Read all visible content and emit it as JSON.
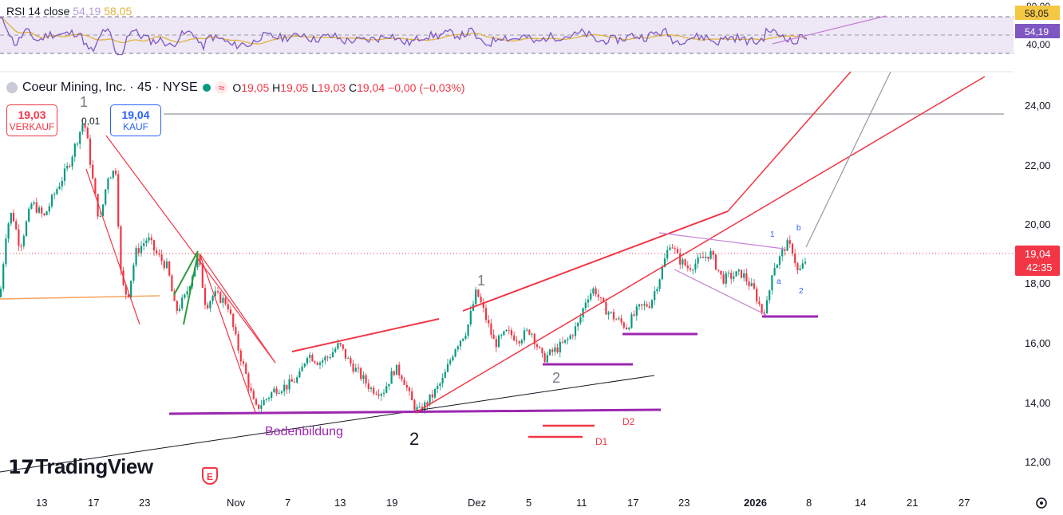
{
  "header": {
    "symbol": "Coeur Mining, Inc. · 45 · NYSE",
    "ohlc": {
      "o_label": "O",
      "o": "19,05",
      "h_label": "H",
      "h": "19,05",
      "l_label": "L",
      "l": "19,03",
      "c_label": "C",
      "c": "19,04",
      "change": "−0,00 (−0,03%)"
    }
  },
  "trade": {
    "sell_price": "19,03",
    "sell_label": "VERKAUF",
    "buy_price": "19,04",
    "buy_label": "KAUF",
    "spread": "0,01"
  },
  "rsi": {
    "title": "RSI 14 close",
    "value": "54,19",
    "ma_value": "58,05",
    "axis_ticks": [
      "80,00",
      "40,00"
    ],
    "badge_ma": "58,05",
    "badge_rsi": "54,19"
  },
  "price_axis": {
    "ticks": [
      "24,00",
      "22,00",
      "20,00",
      "18,00",
      "16,00",
      "14,00",
      "12,00"
    ],
    "current_price": "19,04",
    "countdown": "42:35"
  },
  "time_axis": {
    "labels": [
      "13",
      "17",
      "23",
      "Nov",
      "7",
      "13",
      "19",
      "Dez",
      "5",
      "11",
      "17",
      "23",
      "2026",
      "8",
      "14",
      "21",
      "27"
    ]
  },
  "annotations": {
    "wave_labels": [
      "1",
      "2",
      "1",
      "2"
    ],
    "small_labels": [
      "1",
      "b",
      "a",
      "2"
    ],
    "bottom_text": "Bodenbildung",
    "d_labels": [
      "D2",
      "D1"
    ]
  },
  "brand": {
    "name": "TradingView",
    "badge": "E"
  },
  "colors": {
    "up": "#089981",
    "down": "#f23645",
    "trend": "#f23645",
    "support": "#9c27b0",
    "rsi": "#7e57c2",
    "rsi_ma": "#e0b33a"
  },
  "chart_data": {
    "type": "candlestick",
    "interval": "45 min",
    "y_range": [
      11.2,
      25.2
    ],
    "rsi_range": [
      30,
      90
    ],
    "last_price": 19.04,
    "path": [
      [
        0,
        17.6
      ],
      [
        8,
        19.9
      ],
      [
        15,
        20.5
      ],
      [
        25,
        19.3
      ],
      [
        40,
        20.8
      ],
      [
        55,
        20.3
      ],
      [
        70,
        21.2
      ],
      [
        85,
        22.0
      ],
      [
        95,
        22.8
      ],
      [
        105,
        23.6
      ],
      [
        110,
        22.8
      ],
      [
        118,
        21.2
      ],
      [
        125,
        20.1
      ],
      [
        135,
        21.7
      ],
      [
        145,
        21.9
      ],
      [
        152,
        18.1
      ],
      [
        160,
        17.6
      ],
      [
        170,
        19.1
      ],
      [
        185,
        19.6
      ],
      [
        195,
        19.1
      ],
      [
        210,
        18.6
      ],
      [
        220,
        17.1
      ],
      [
        232,
        17.6
      ],
      [
        248,
        19.0
      ],
      [
        258,
        17.3
      ],
      [
        268,
        17.7
      ],
      [
        285,
        17.4
      ],
      [
        297,
        16.0
      ],
      [
        310,
        14.8
      ],
      [
        320,
        13.8
      ],
      [
        335,
        14.2
      ],
      [
        345,
        14.5
      ],
      [
        360,
        14.6
      ],
      [
        375,
        14.9
      ],
      [
        385,
        15.7
      ],
      [
        400,
        15.4
      ],
      [
        412,
        15.6
      ],
      [
        425,
        16.0
      ],
      [
        435,
        15.5
      ],
      [
        450,
        15.0
      ],
      [
        465,
        14.5
      ],
      [
        480,
        14.4
      ],
      [
        495,
        15.2
      ],
      [
        505,
        14.9
      ],
      [
        515,
        14.1
      ],
      [
        525,
        13.7
      ],
      [
        540,
        14.2
      ],
      [
        555,
        14.8
      ],
      [
        570,
        15.9
      ],
      [
        585,
        16.5
      ],
      [
        597,
        17.8
      ],
      [
        605,
        17.2
      ],
      [
        620,
        16.0
      ],
      [
        635,
        16.4
      ],
      [
        650,
        16.2
      ],
      [
        665,
        16.5
      ],
      [
        680,
        15.5
      ],
      [
        695,
        15.8
      ],
      [
        710,
        16.1
      ],
      [
        725,
        16.7
      ],
      [
        735,
        17.6
      ],
      [
        745,
        17.9
      ],
      [
        755,
        17.3
      ],
      [
        770,
        16.9
      ],
      [
        785,
        16.6
      ],
      [
        800,
        17.2
      ],
      [
        815,
        17.4
      ],
      [
        828,
        18.4
      ],
      [
        840,
        19.5
      ],
      [
        850,
        18.9
      ],
      [
        862,
        18.6
      ],
      [
        875,
        18.8
      ],
      [
        890,
        19.1
      ],
      [
        905,
        18.2
      ],
      [
        915,
        18.3
      ],
      [
        930,
        18.4
      ],
      [
        945,
        17.8
      ],
      [
        955,
        17.1
      ],
      [
        962,
        17.4
      ],
      [
        968,
        18.6
      ],
      [
        975,
        18.8
      ],
      [
        985,
        19.4
      ],
      [
        993,
        19.2
      ],
      [
        1000,
        18.4
      ],
      [
        1007,
        18.7
      ],
      [
        1012,
        19.04
      ]
    ]
  }
}
